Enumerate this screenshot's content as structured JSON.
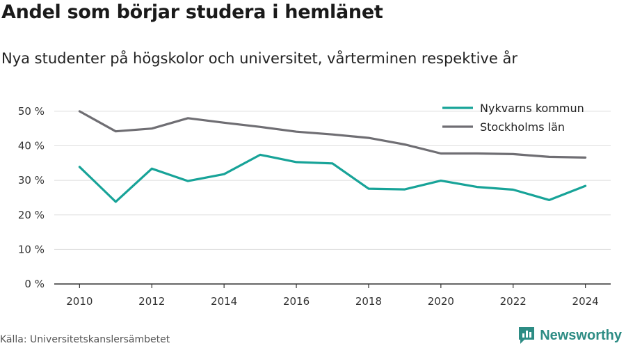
{
  "title": "Andel som börjar studera i hemlänet",
  "subtitle": "Nya studenter på högskolor och universitet, vårterminen respektive år",
  "source": "Källa: Universitetskanslersämbetet",
  "brand": {
    "name": "Newsworthy",
    "icon": "newsworthy-logo-icon",
    "color": "#2d8c84"
  },
  "chart_data": {
    "type": "line",
    "x": [
      2010,
      2011,
      2012,
      2013,
      2014,
      2015,
      2016,
      2017,
      2018,
      2019,
      2020,
      2021,
      2022,
      2023,
      2024
    ],
    "x_ticks": [
      2010,
      2012,
      2014,
      2016,
      2018,
      2020,
      2022,
      2024
    ],
    "y_ticks": [
      0,
      10,
      20,
      30,
      40,
      50
    ],
    "y_tick_labels": [
      "0 %",
      "10 %",
      "20 %",
      "30 %",
      "40 %",
      "50 %"
    ],
    "ylim": [
      0,
      52
    ],
    "xlim": [
      2009.3,
      2024.7
    ],
    "grid": true,
    "legend_position": "top-right",
    "series": [
      {
        "name": "Nykvarns kommun",
        "color": "#17a398",
        "values": [
          33.9,
          23.8,
          33.4,
          29.8,
          31.8,
          37.4,
          35.3,
          34.9,
          27.6,
          27.4,
          29.9,
          28.1,
          27.3,
          24.3,
          28.4
        ]
      },
      {
        "name": "Stockholms län",
        "color": "#6f6e73",
        "values": [
          50.0,
          44.2,
          45.0,
          48.0,
          46.7,
          45.5,
          44.1,
          43.3,
          42.3,
          40.4,
          37.8,
          37.8,
          37.6,
          36.8,
          36.6
        ]
      }
    ]
  }
}
